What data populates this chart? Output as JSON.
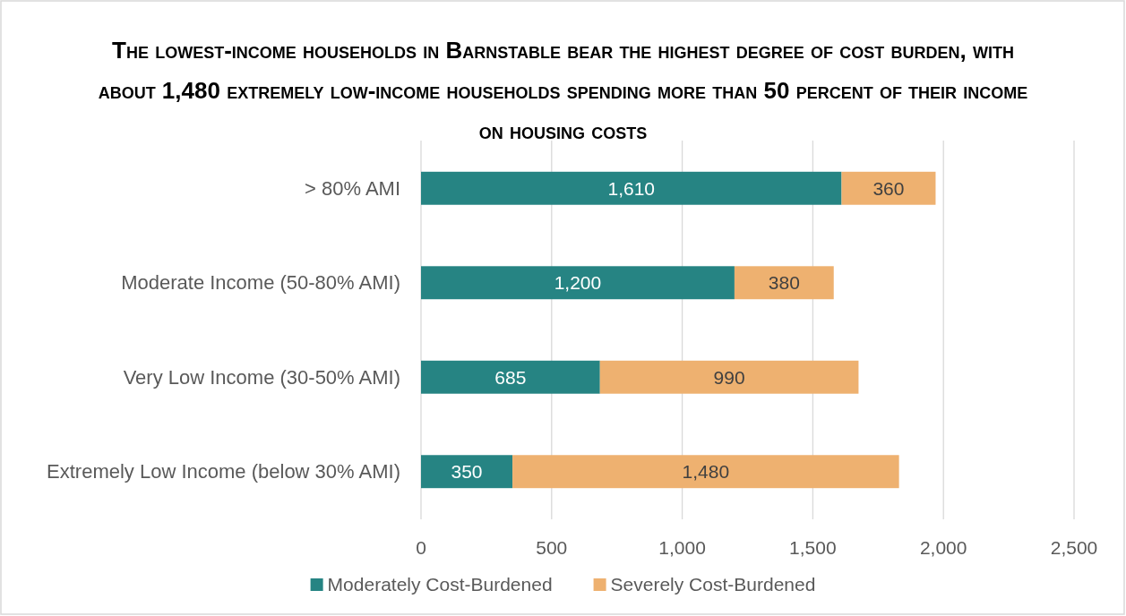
{
  "chart_data": {
    "type": "bar",
    "orientation": "horizontal",
    "stacked": true,
    "title": "The lowest-income households in Barnstable bear the highest degree of cost burden, with about 1,480 extremely low-income households spending more than 50 percent of their income on housing costs",
    "categories": [
      "> 80% AMI",
      "Moderate Income (50-80% AMI)",
      "Very Low Income (30-50% AMI)",
      "Extremely Low Income (below 30% AMI)"
    ],
    "series": [
      {
        "name": "Moderately Cost-Burdened",
        "color": "#268483",
        "values": [
          1610,
          1200,
          685,
          350
        ],
        "value_labels": [
          "1,610",
          "1,200",
          "685",
          "350"
        ]
      },
      {
        "name": "Severely Cost-Burdened",
        "color": "#eeb170",
        "values": [
          360,
          380,
          990,
          1480
        ],
        "value_labels": [
          "360",
          "380",
          "990",
          "1,480"
        ]
      }
    ],
    "xlim": [
      0,
      2500
    ],
    "xticks": [
      0,
      500,
      {
        "value": 1000,
        "label": "1,000"
      },
      {
        "value": 1500,
        "label": "1,500"
      },
      {
        "value": 2000,
        "label": "2,000"
      },
      {
        "value": 2500,
        "label": "2,500"
      }
    ],
    "grid": "x",
    "legend": "bottom"
  }
}
